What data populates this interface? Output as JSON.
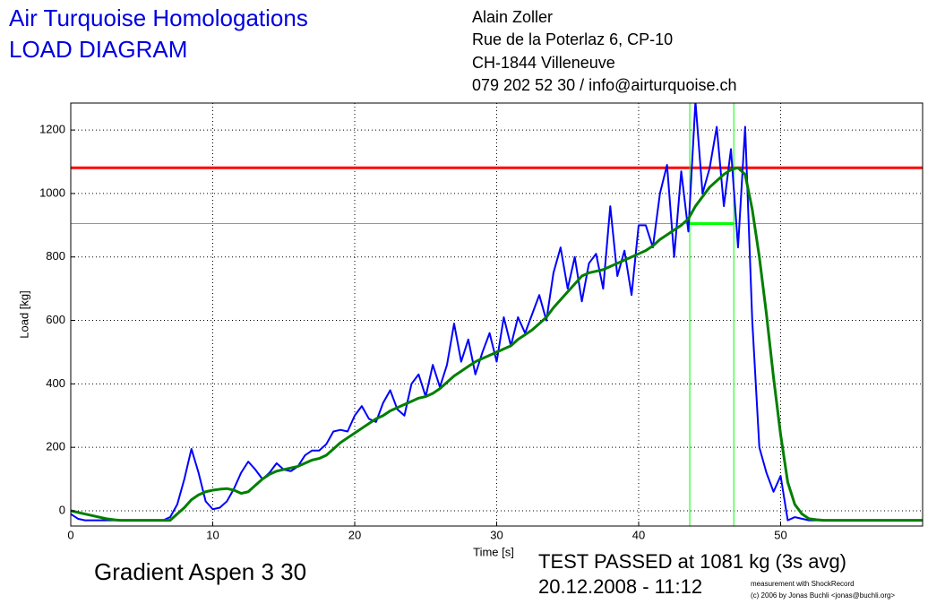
{
  "chart_data": {
    "type": "line",
    "title": "Air Turquoise Homologations",
    "subtitle": "LOAD DIAGRAM",
    "address": [
      "Alain Zoller",
      "Rue de la Poterlaz 6, CP-10",
      "CH-1844 Villeneuve",
      "079 202 52 30 / info@airturquoise.ch"
    ],
    "glider": "Gradient Aspen 3 30",
    "result": "TEST PASSED at 1081 kg (3s avg)",
    "date": "20.12.2008 - 11:12",
    "credits": [
      "measurement with ShockRecord",
      "(c) 2006 by Jonas Buchli <jonas@buchli.org>"
    ],
    "xlabel": "Time [s]",
    "ylabel": "Load [kg]",
    "xlim": [
      0,
      60
    ],
    "ylim": [
      -48,
      1285
    ],
    "xticks": [
      0,
      10,
      20,
      30,
      40,
      50
    ],
    "yticks": [
      0,
      200,
      400,
      600,
      800,
      1000,
      1200
    ],
    "grid": true,
    "x": [
      0,
      0.5,
      1,
      1.5,
      2,
      2.5,
      3,
      3.5,
      4,
      4.5,
      5,
      5.5,
      6,
      6.5,
      7,
      7.5,
      8,
      8.5,
      9,
      9.5,
      10,
      10.5,
      11,
      11.5,
      12,
      12.5,
      13,
      13.5,
      14,
      14.5,
      15,
      15.5,
      16,
      16.5,
      17,
      17.5,
      18,
      18.5,
      19,
      19.5,
      20,
      20.5,
      21,
      21.5,
      22,
      22.5,
      23,
      23.5,
      24,
      24.5,
      25,
      25.5,
      26,
      26.5,
      27,
      27.5,
      28,
      28.5,
      29,
      29.5,
      30,
      30.5,
      31,
      31.5,
      32,
      32.5,
      33,
      33.5,
      34,
      34.5,
      35,
      35.5,
      36,
      36.5,
      37,
      37.5,
      38,
      38.5,
      39,
      39.5,
      40,
      40.5,
      41,
      41.5,
      42,
      42.5,
      43,
      43.5,
      44,
      44.5,
      45,
      45.5,
      46,
      46.5,
      47,
      47.5,
      48,
      48.5,
      49,
      49.5,
      50,
      50.5,
      51,
      51.5,
      52,
      52.5,
      53,
      53.5,
      54,
      54.5,
      55,
      55.5,
      56,
      56.5,
      57,
      57.5,
      58,
      58.5,
      59,
      59.5,
      60
    ],
    "series": [
      {
        "color": "#0000ff",
        "width": 2,
        "values": [
          -10,
          -25,
          -30,
          -30,
          -30,
          -30,
          -30,
          -30,
          -30,
          -30,
          -30,
          -30,
          -30,
          -30,
          -20,
          20,
          100,
          195,
          120,
          30,
          5,
          10,
          30,
          70,
          120,
          155,
          130,
          100,
          120,
          150,
          130,
          125,
          140,
          175,
          190,
          190,
          210,
          250,
          255,
          250,
          300,
          330,
          290,
          280,
          340,
          380,
          320,
          300,
          400,
          430,
          360,
          460,
          390,
          460,
          590,
          470,
          540,
          430,
          500,
          560,
          470,
          610,
          520,
          610,
          560,
          620,
          680,
          600,
          750,
          830,
          700,
          800,
          660,
          780,
          810,
          700,
          960,
          740,
          820,
          680,
          900,
          900,
          830,
          1000,
          1090,
          800,
          1070,
          880,
          1290,
          1000,
          1080,
          1210,
          960,
          1140,
          830,
          1210,
          600,
          200,
          120,
          60,
          110,
          -30,
          -20,
          -25,
          -30,
          -30,
          -30,
          -30,
          -30,
          -30,
          -30,
          -30,
          -30,
          -30,
          -30,
          -30,
          -30,
          -30,
          -30,
          -30,
          -30
        ]
      },
      {
        "color": "#007f00",
        "width": 3,
        "values": [
          0,
          -5,
          -10,
          -15,
          -20,
          -25,
          -28,
          -30,
          -30,
          -30,
          -30,
          -30,
          -30,
          -30,
          -30,
          -10,
          10,
          35,
          50,
          60,
          65,
          68,
          70,
          65,
          55,
          60,
          80,
          100,
          115,
          125,
          130,
          135,
          140,
          150,
          160,
          165,
          175,
          195,
          215,
          230,
          245,
          260,
          275,
          290,
          300,
          315,
          325,
          335,
          345,
          355,
          360,
          370,
          385,
          405,
          425,
          440,
          455,
          470,
          480,
          490,
          500,
          510,
          520,
          540,
          555,
          570,
          590,
          610,
          640,
          665,
          690,
          715,
          740,
          750,
          755,
          760,
          770,
          780,
          790,
          800,
          810,
          820,
          835,
          855,
          870,
          885,
          900,
          920,
          960,
          990,
          1020,
          1040,
          1060,
          1075,
          1081,
          1060,
          950,
          800,
          620,
          420,
          240,
          90,
          20,
          -10,
          -25,
          -28,
          -30,
          -30,
          -30,
          -30,
          -30,
          -30,
          -30,
          -30,
          -30,
          -30,
          -30,
          -30,
          -30,
          -30,
          -30
        ]
      }
    ],
    "hlines": [
      {
        "value": 1081,
        "color": "#ff0000",
        "width": 3
      },
      {
        "value": 905,
        "color": "#00ff00",
        "width": 1
      }
    ],
    "vlines": [
      {
        "value": 43.6,
        "color": "#00ff00"
      },
      {
        "value": 46.7,
        "color": "#00ff00"
      }
    ],
    "window": {
      "start": 43.6,
      "end": 46.7,
      "level": 905,
      "color": "#00ff00"
    }
  }
}
